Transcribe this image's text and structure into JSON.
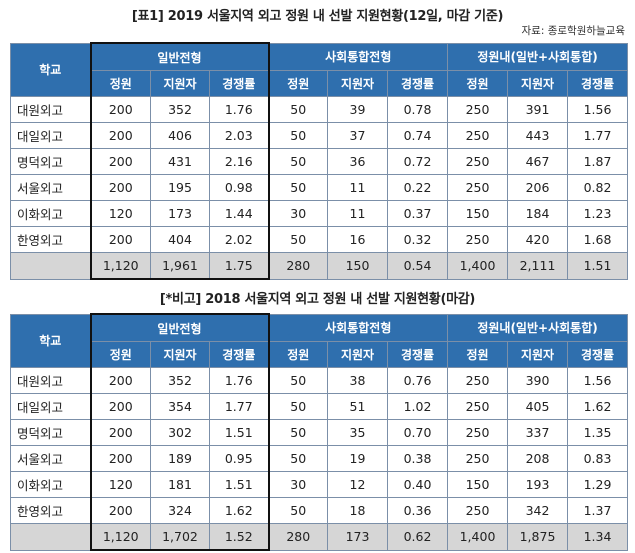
{
  "tables": [
    {
      "title": "[표1] 2019 서울지역 외고 정원 내 선발 지원현황(12일, 마감 기준)",
      "source": "자료: 종로학원하늘교육",
      "headers": {
        "school": "학교",
        "groups": [
          "일반전형",
          "사회통합전형",
          "정원내(일반+사회통합)"
        ],
        "sub": [
          "정원",
          "지원자",
          "경쟁률",
          "정원",
          "지원자",
          "경쟁률",
          "정원",
          "지원자",
          "경쟁률"
        ]
      },
      "rows": [
        [
          "대원외고",
          "200",
          "352",
          "1.76",
          "50",
          "39",
          "0.78",
          "250",
          "391",
          "1.56"
        ],
        [
          "대일외고",
          "200",
          "406",
          "2.03",
          "50",
          "37",
          "0.74",
          "250",
          "443",
          "1.77"
        ],
        [
          "명덕외고",
          "200",
          "431",
          "2.16",
          "50",
          "36",
          "0.72",
          "250",
          "467",
          "1.87"
        ],
        [
          "서울외고",
          "200",
          "195",
          "0.98",
          "50",
          "11",
          "0.22",
          "250",
          "206",
          "0.82"
        ],
        [
          "이화외고",
          "120",
          "173",
          "1.44",
          "30",
          "11",
          "0.37",
          "150",
          "184",
          "1.23"
        ],
        [
          "한영외고",
          "200",
          "404",
          "2.02",
          "50",
          "16",
          "0.32",
          "250",
          "420",
          "1.68"
        ]
      ],
      "total": [
        "",
        "1,120",
        "1,961",
        "1.75",
        "280",
        "150",
        "0.54",
        "1,400",
        "2,111",
        "1.51"
      ]
    },
    {
      "title": "[*비고] 2018 서울지역 외고 정원 내 선발 지원현황(마감)",
      "headers": {
        "school": "학교",
        "groups": [
          "일반전형",
          "사회통합전형",
          "정원내(일반+사회통합)"
        ],
        "sub": [
          "정원",
          "지원자",
          "경쟁률",
          "정원",
          "지원자",
          "경쟁률",
          "정원",
          "지원자",
          "경쟁률"
        ]
      },
      "rows": [
        [
          "대원외고",
          "200",
          "352",
          "1.76",
          "50",
          "38",
          "0.76",
          "250",
          "390",
          "1.56"
        ],
        [
          "대일외고",
          "200",
          "354",
          "1.77",
          "50",
          "51",
          "1.02",
          "250",
          "405",
          "1.62"
        ],
        [
          "명덕외고",
          "200",
          "302",
          "1.51",
          "50",
          "35",
          "0.70",
          "250",
          "337",
          "1.35"
        ],
        [
          "서울외고",
          "200",
          "189",
          "0.95",
          "50",
          "19",
          "0.38",
          "250",
          "208",
          "0.83"
        ],
        [
          "이화외고",
          "120",
          "181",
          "1.51",
          "30",
          "12",
          "0.40",
          "150",
          "193",
          "1.29"
        ],
        [
          "한영외고",
          "200",
          "324",
          "1.62",
          "50",
          "18",
          "0.36",
          "250",
          "342",
          "1.37"
        ]
      ],
      "total": [
        "",
        "1,120",
        "1,702",
        "1.52",
        "280",
        "173",
        "0.62",
        "1,400",
        "1,875",
        "1.34"
      ]
    }
  ],
  "colors": {
    "header_bg": "#2f6fae",
    "total_bg": "#d6d6d6",
    "grid": "#7b8fa8"
  }
}
